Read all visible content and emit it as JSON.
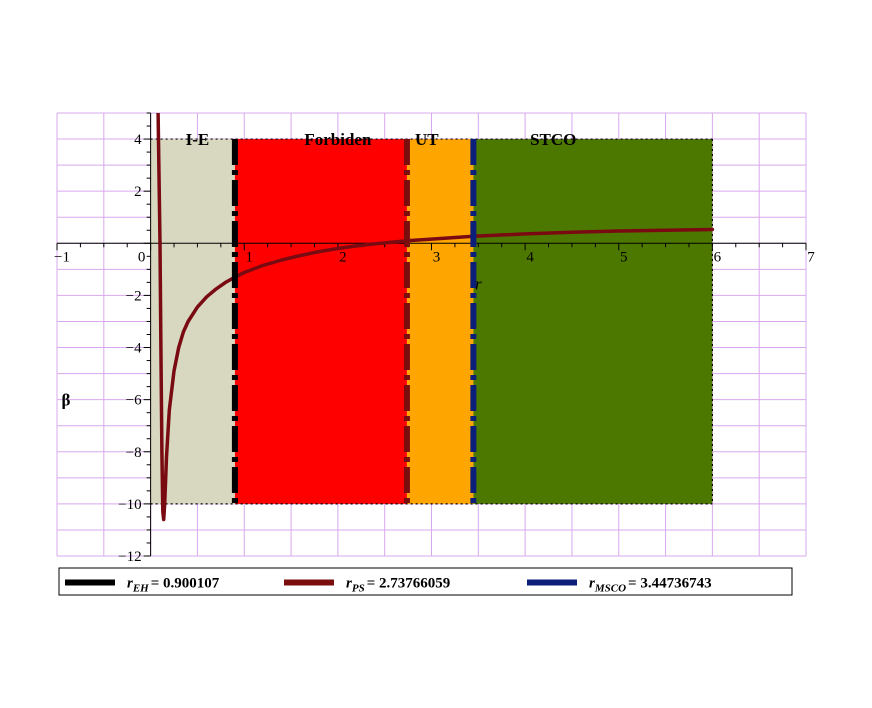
{
  "chart_data": {
    "type": "line",
    "xlabel": "r",
    "ylabel": "β",
    "xlim": [
      -1,
      7
    ],
    "ylim": [
      -12,
      5
    ],
    "grid": true,
    "x_ticks": [
      {
        "value": -1,
        "label": "−1"
      },
      {
        "value": 0,
        "label": "0"
      },
      {
        "value": 1,
        "label": "1"
      },
      {
        "value": 2,
        "label": "2"
      },
      {
        "value": 3,
        "label": "3"
      },
      {
        "value": 4,
        "label": "4"
      },
      {
        "value": 5,
        "label": "5"
      },
      {
        "value": 6,
        "label": "6"
      },
      {
        "value": 7,
        "label": "7"
      }
    ],
    "y_ticks": [
      {
        "value": 4,
        "label": "4"
      },
      {
        "value": 2,
        "label": "2"
      },
      {
        "value": -2,
        "label": "−2"
      },
      {
        "value": -4,
        "label": "−4"
      },
      {
        "value": -6,
        "label": "−6"
      },
      {
        "value": -8,
        "label": "−8"
      },
      {
        "value": -10,
        "label": "−10"
      },
      {
        "value": -12,
        "label": "−12"
      }
    ],
    "regions": [
      {
        "name": "I-E",
        "x0": 0,
        "x1": 0.900107,
        "y0": -10,
        "y1": 4,
        "color": "#d8d8c0"
      },
      {
        "name": "Forbiden",
        "x0": 0.900107,
        "x1": 2.73766059,
        "y0": -10,
        "y1": 4,
        "color": "#ff0000"
      },
      {
        "name": "UT",
        "x0": 2.73766059,
        "x1": 3.44736743,
        "y0": -10,
        "y1": 4,
        "color": "#ffa500"
      },
      {
        "name": "STCO",
        "x0": 3.44736743,
        "x1": 6,
        "y0": -10,
        "y1": 4,
        "color": "#4d7800"
      }
    ],
    "vlines": [
      {
        "name": "r_EH",
        "x": 0.900107,
        "color": "#000000"
      },
      {
        "name": "r_PS",
        "x": 2.73766059,
        "color": "#7a0e0e"
      },
      {
        "name": "r_MSCO",
        "x": 3.44736743,
        "color": "#0b1f7a"
      }
    ],
    "series": [
      {
        "color": "#7a0a12",
        "x": [
          0.08,
          0.1,
          0.11,
          0.12,
          0.13,
          0.14,
          0.15,
          0.17,
          0.2,
          0.25,
          0.3,
          0.35,
          0.4,
          0.5,
          0.6,
          0.7,
          0.8,
          0.9,
          1.0,
          1.2,
          1.4,
          1.6,
          1.8,
          2.0,
          2.2,
          2.4,
          2.6,
          2.73766059,
          3.0,
          3.44736743,
          4.0,
          4.5,
          5.0,
          5.5,
          6.0
        ],
        "y": [
          5,
          0,
          -4,
          -8,
          -10.3,
          -10.6,
          -10.0,
          -8.2,
          -6.4,
          -4.9,
          -4.0,
          -3.4,
          -3.0,
          -2.45,
          -2.05,
          -1.75,
          -1.5,
          -1.3,
          -1.12,
          -0.85,
          -0.64,
          -0.47,
          -0.32,
          -0.2,
          -0.1,
          -0.02,
          0.05,
          0.1,
          0.16,
          0.27,
          0.36,
          0.42,
          0.47,
          0.5,
          0.53
        ]
      }
    ],
    "legend": {
      "placement": "bottom",
      "entries": [
        {
          "key": "r_EH",
          "sym": "r",
          "sub": "EH",
          "value": "= 0.900107",
          "color": "#000000"
        },
        {
          "key": "r_PS",
          "sym": "r",
          "sub": "PS",
          "value": "= 2.73766059",
          "color": "#7a0e0e"
        },
        {
          "key": "r_MSCO",
          "sym": "r",
          "sub": "MSCO",
          "value": "= 3.44736743",
          "color": "#0b1f7a"
        }
      ]
    }
  }
}
